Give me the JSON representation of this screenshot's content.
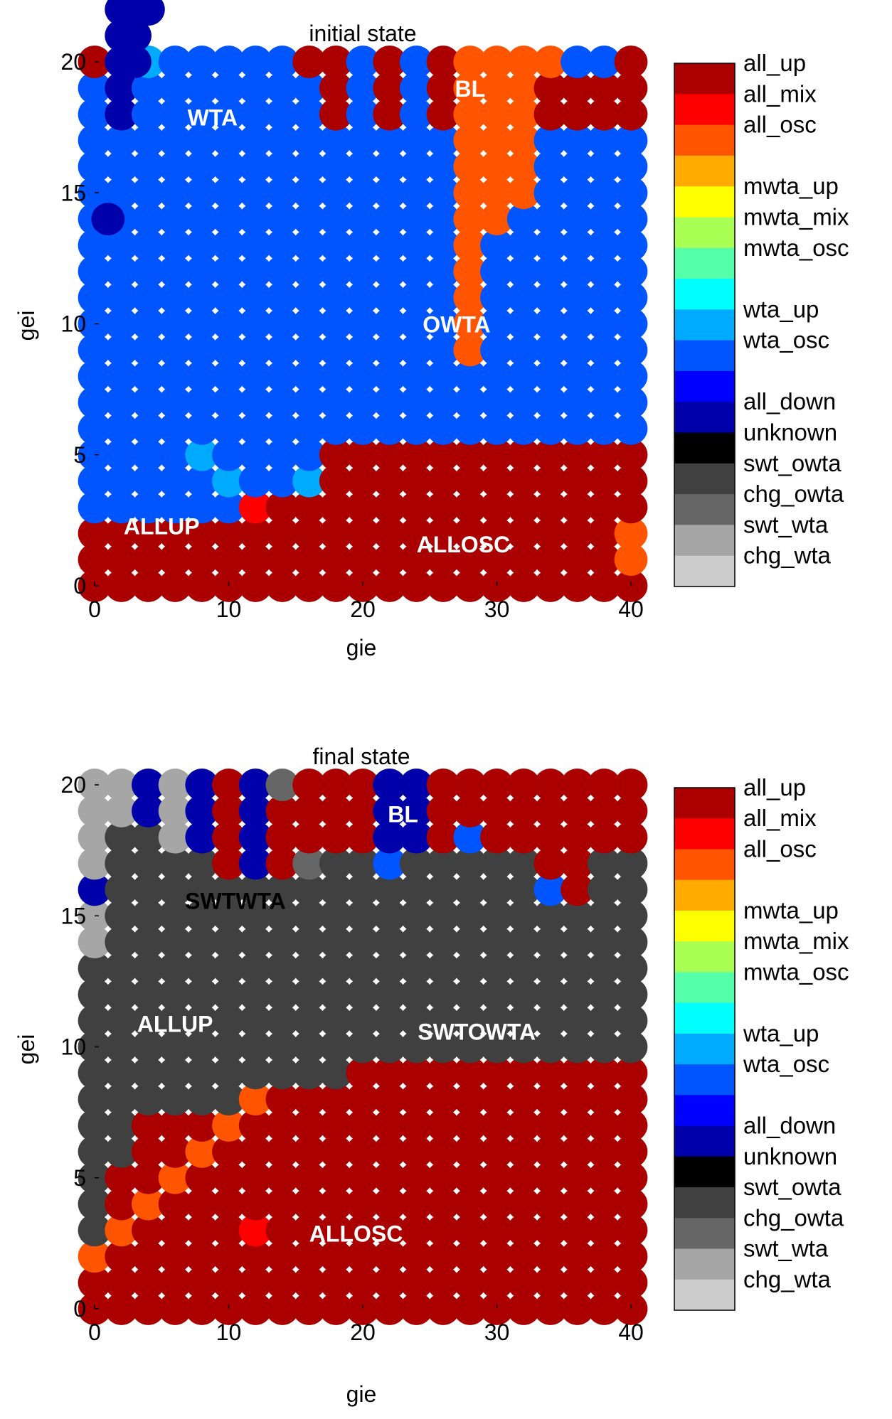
{
  "colormap": [
    {
      "name": "all_up",
      "color": "#AA0000"
    },
    {
      "name": "all_mix",
      "color": "#FF0000"
    },
    {
      "name": "all_osc",
      "color": "#FF5500"
    },
    {
      "name": "",
      "color": "#FFAA00"
    },
    {
      "name": "mwta_up",
      "color": "#FFFF00"
    },
    {
      "name": "mwta_mix",
      "color": "#AAFF55"
    },
    {
      "name": "mwta_osc",
      "color": "#55FFAA"
    },
    {
      "name": "",
      "color": "#00FFFF"
    },
    {
      "name": "wta_up",
      "color": "#00AAFF"
    },
    {
      "name": "wta_osc",
      "color": "#0055FF"
    },
    {
      "name": "",
      "color": "#0000FF"
    },
    {
      "name": "all_down",
      "color": "#0000AA"
    },
    {
      "name": "unknown",
      "color": "#000000"
    },
    {
      "name": "swt_owta",
      "color": "#404040"
    },
    {
      "name": "chg_owta",
      "color": "#666666"
    },
    {
      "name": "swt_wta",
      "color": "#A6A6A6"
    },
    {
      "name": "chg_wta",
      "color": "#CCCCCC"
    }
  ],
  "chart_data": [
    {
      "type": "heatmap",
      "title": "initial state",
      "xlabel": "gie",
      "ylabel": "gei",
      "xlim": [
        0,
        40
      ],
      "ylim": [
        0,
        20
      ],
      "xticks": [
        0,
        10,
        20,
        30,
        40
      ],
      "yticks": [
        0,
        5,
        10,
        15,
        20
      ],
      "x_step": 2,
      "y_step": 1,
      "default_state": "all_up",
      "regions": [
        {
          "state": "wta_up",
          "label": "WTA",
          "label_pos": [
            8.8,
            17.8
          ],
          "label_color": "#FFFFFF",
          "runs": [
            [
              4,
              17,
              20
            ],
            [
              6,
              16,
              16
            ],
            [
              8,
              14,
              15
            ],
            [
              10,
              12,
              15
            ],
            [
              12,
              11,
              14
            ],
            [
              14,
              7,
              14
            ],
            [
              16,
              4,
              12
            ]
          ]
        },
        {
          "state": "all_down",
          "label": "BL",
          "label_pos": [
            28,
            18.9
          ],
          "label_color": "#FFFFFF",
          "runs": [
            [
              0,
              14,
              14
            ],
            [
              1,
              14,
              14
            ],
            [
              2,
              18,
              28
            ],
            [
              3,
              20,
              26
            ],
            [
              4,
              22,
              26
            ],
            [
              5,
              24,
              26
            ],
            [
              6,
              24,
              26
            ]
          ]
        },
        {
          "state": "wta_osc",
          "label": "OWTA",
          "label_pos": [
            27,
            9.9
          ],
          "label_color": "#FFFFFF",
          "runs": [
            [
              0,
              3,
              19
            ],
            [
              2,
              3,
              17
            ],
            [
              4,
              3,
              19
            ],
            [
              6,
              3,
              20
            ],
            [
              8,
              3,
              20
            ],
            [
              10,
              3,
              20
            ],
            [
              12,
              3,
              20
            ],
            [
              14,
              4,
              20
            ],
            [
              16,
              5,
              19
            ],
            [
              18,
              6,
              17
            ],
            [
              20,
              6,
              17
            ],
            [
              22,
              6,
              17
            ],
            [
              24,
              6,
              17
            ],
            [
              26,
              6,
              17
            ],
            [
              28,
              6,
              17
            ],
            [
              30,
              6,
              17
            ],
            [
              32,
              6,
              17
            ],
            [
              34,
              6,
              17
            ],
            [
              36,
              6,
              17
            ],
            [
              38,
              6,
              17
            ],
            [
              40,
              6,
              17
            ],
            [
              20,
              18,
              20
            ],
            [
              24,
              18,
              20
            ],
            [
              34,
              20,
              20
            ],
            [
              36,
              20,
              20
            ]
          ]
        },
        {
          "state": "all_osc",
          "label": "ALLOSC",
          "label_pos": [
            27.5,
            1.5
          ],
          "label_color": "#FFFFFF",
          "runs": [
            [
              28,
              9,
              20
            ],
            [
              30,
              14,
              20
            ],
            [
              32,
              15,
              20
            ],
            [
              34,
              20,
              20
            ],
            [
              40,
              1,
              1
            ],
            [
              40,
              2,
              2
            ]
          ]
        },
        {
          "state": "all_mix",
          "label": "",
          "runs": [
            [
              12,
              3,
              3
            ]
          ]
        }
      ],
      "cells": [
        {
          "x": 12,
          "y": 3,
          "state": "all_mix"
        },
        {
          "x": 14,
          "y": 20,
          "state": "wta_osc"
        },
        {
          "x": 38,
          "y": 20,
          "state": "wta_osc"
        },
        {
          "x": 10,
          "y": 4,
          "state": "wta_up"
        },
        {
          "x": 8,
          "y": 5,
          "state": "wta_up"
        }
      ],
      "region_labels": [
        {
          "text": "ALLUP",
          "x": 5,
          "y": 2.2,
          "color": "#FFFFFF"
        }
      ]
    },
    {
      "type": "heatmap",
      "title": "final state",
      "xlabel": "gie",
      "ylabel": "gei",
      "xlim": [
        0,
        40
      ],
      "ylim": [
        0,
        20
      ],
      "xticks": [
        0,
        10,
        20,
        30,
        40
      ],
      "yticks": [
        0,
        5,
        10,
        15,
        20
      ],
      "x_step": 2,
      "y_step": 1,
      "default_state": "all_up",
      "regions": [
        {
          "state": "swt_wta",
          "label": "SWTWTA",
          "label_pos": [
            10.5,
            15.5
          ],
          "label_color": "#000000",
          "runs": [
            [
              0,
              12,
              20
            ],
            [
              2,
              12,
              20
            ],
            [
              4,
              15,
              20
            ],
            [
              6,
              15,
              20
            ]
          ]
        },
        {
          "state": "all_down",
          "label": "BL",
          "label_pos": [
            23,
            18.8
          ],
          "label_color": "#FFFFFF",
          "runs": [
            [
              0,
              16,
              16
            ],
            [
              2,
              16,
              16
            ],
            [
              4,
              18,
              20
            ],
            [
              8,
              18,
              20
            ],
            [
              12,
              16,
              20
            ],
            [
              16,
              17,
              17
            ],
            [
              18,
              17,
              17
            ],
            [
              20,
              17,
              17
            ],
            [
              22,
              17,
              20
            ],
            [
              24,
              17,
              20
            ]
          ]
        },
        {
          "state": "swt_owta",
          "label": "SWTOWTA",
          "label_pos": [
            28.5,
            10.5
          ],
          "label_color": "#FFFFFF",
          "runs": [
            [
              0,
              3,
              13
            ],
            [
              2,
              6,
              18
            ],
            [
              4,
              8,
              18
            ],
            [
              6,
              8,
              17
            ],
            [
              8,
              8,
              17
            ],
            [
              10,
              8,
              16
            ],
            [
              12,
              9,
              16
            ],
            [
              14,
              9,
              16
            ],
            [
              16,
              9,
              16
            ],
            [
              18,
              9,
              17
            ],
            [
              20,
              10,
              17
            ],
            [
              22,
              10,
              17
            ],
            [
              24,
              10,
              17
            ],
            [
              26,
              10,
              17
            ],
            [
              28,
              10,
              17
            ],
            [
              30,
              10,
              17
            ],
            [
              32,
              10,
              17
            ],
            [
              34,
              10,
              15
            ],
            [
              36,
              10,
              15
            ],
            [
              38,
              10,
              17
            ],
            [
              40,
              10,
              17
            ]
          ]
        },
        {
          "state": "all_osc",
          "label": "ALLOSC",
          "label_pos": [
            19.5,
            2.8
          ],
          "label_color": "#FFFFFF",
          "runs": [
            [
              0,
              2,
              2
            ],
            [
              2,
              3,
              3
            ],
            [
              4,
              4,
              4
            ],
            [
              6,
              5,
              5
            ],
            [
              8,
              6,
              6
            ],
            [
              10,
              7,
              7
            ],
            [
              12,
              8,
              8
            ]
          ]
        },
        {
          "state": "all_mix",
          "label": "",
          "runs": [
            [
              12,
              3,
              3
            ]
          ]
        }
      ],
      "cells": [
        {
          "x": 14,
          "y": 20,
          "state": "chg_owta"
        },
        {
          "x": 16,
          "y": 17,
          "state": "chg_owta"
        },
        {
          "x": 22,
          "y": 17,
          "state": "wta_osc"
        },
        {
          "x": 28,
          "y": 18,
          "state": "wta_osc"
        },
        {
          "x": 34,
          "y": 16,
          "state": "wta_osc"
        }
      ],
      "region_labels": [
        {
          "text": "ALLUP",
          "x": 6,
          "y": 10.8,
          "color": "#FFFFFF"
        }
      ]
    }
  ]
}
